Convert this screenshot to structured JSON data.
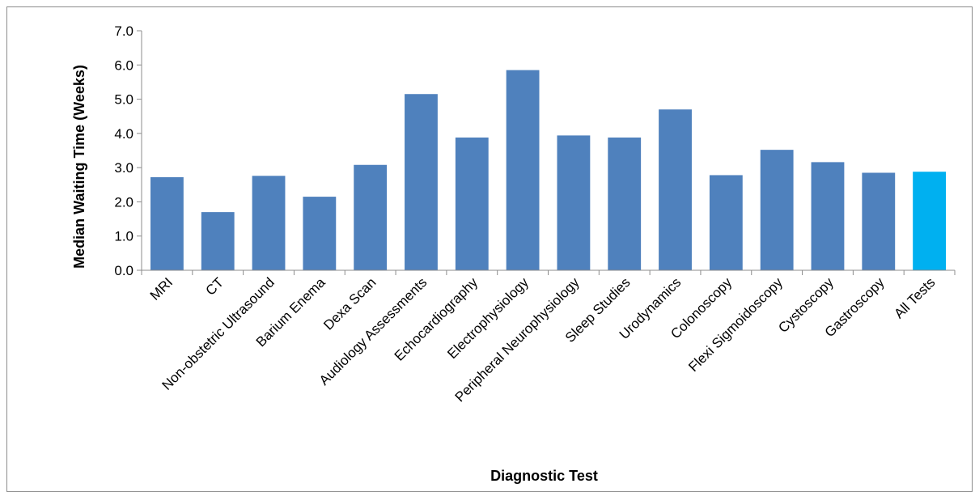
{
  "chart_data": {
    "type": "bar",
    "title": "",
    "xlabel": "Diagnostic Test",
    "ylabel": "Median Waiting Time (Weeks)",
    "ylim": [
      0,
      7
    ],
    "yticks": [
      "0.0",
      "1.0",
      "2.0",
      "3.0",
      "4.0",
      "5.0",
      "6.0",
      "7.0"
    ],
    "grid": false,
    "categories": [
      "MRI",
      "CT",
      "Non-obstetric Ultrasound",
      "Barium Enema",
      "Dexa Scan",
      "Audiology Assessments",
      "Echocardiography",
      "Electrophysiology",
      "Peripheral Neurophysiology",
      "Sleep Studies",
      "Urodynamics",
      "Colonoscopy",
      "Flexi Sigmoidoscopy",
      "Cystoscopy",
      "Gastroscopy",
      "All Tests"
    ],
    "values": [
      2.72,
      1.7,
      2.76,
      2.15,
      3.08,
      5.15,
      3.88,
      5.85,
      3.94,
      3.88,
      4.7,
      2.78,
      3.52,
      3.16,
      2.85,
      2.88
    ],
    "colors": {
      "bar": "#4f81bd",
      "highlight": "#00b0f0",
      "highlight_category": "All Tests"
    }
  }
}
